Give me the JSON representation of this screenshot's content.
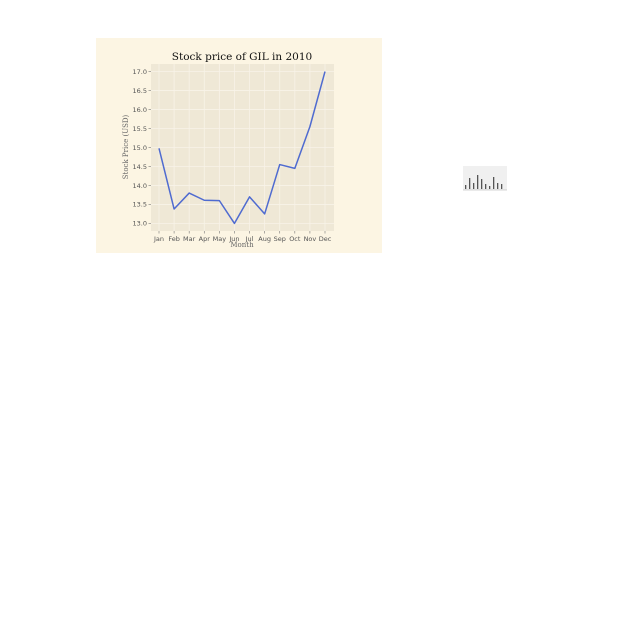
{
  "chart_data": {
    "type": "line",
    "title": "Stock price of GIL in 2010",
    "xlabel": "Month",
    "ylabel": "Stock Price (USD)",
    "categories": [
      "Jan",
      "Feb",
      "Mar",
      "Apr",
      "May",
      "Jun",
      "Jul",
      "Aug",
      "Sep",
      "Oct",
      "Nov",
      "Dec"
    ],
    "series": [
      {
        "values": [
          14.98,
          13.38,
          13.8,
          13.61,
          13.6,
          13.0,
          13.7,
          13.25,
          14.55,
          14.45,
          15.55,
          17.0
        ]
      }
    ],
    "yticks": [
      13.0,
      13.5,
      14.0,
      14.5,
      15.0,
      15.5,
      16.0,
      16.5,
      17.0
    ],
    "ytick_labels": [
      "13.0",
      "13.5",
      "14.0",
      "14.5",
      "15.0",
      "15.5",
      "16.0",
      "16.5",
      "17.0"
    ],
    "ylim": [
      12.8,
      17.2
    ],
    "grid": true,
    "colors": {
      "figure_background": "#fcf5e3",
      "plot_background": "#efe8d6",
      "grid": "#f8f3e8",
      "line": "#4f6bd0"
    }
  },
  "thumbnail": {
    "type": "bar",
    "values": [
      0.2,
      0.55,
      0.3,
      0.7,
      0.5,
      0.25,
      0.15,
      0.6,
      0.3,
      0.25
    ],
    "colors": {
      "background": "#f0f0f0",
      "bar": "#555555"
    }
  }
}
